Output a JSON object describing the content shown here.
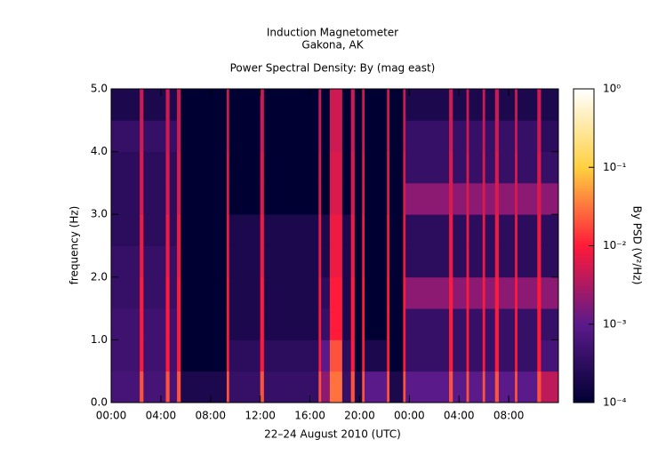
{
  "chart_data": {
    "type": "spectrogram",
    "title": "Induction Magnetometer",
    "subtitle": "Gakona, AK",
    "plot_title": "Power Spectral Density: By (mag east)",
    "xlabel": "22–24 August 2010 (UTC)",
    "ylabel": "frequency (Hz)",
    "colorbar_label": "By PSD (V²/Hz)",
    "xlim": [
      0,
      36
    ],
    "xticks": [
      {
        "value": 0,
        "label": "00:00"
      },
      {
        "value": 4,
        "label": "04:00"
      },
      {
        "value": 8,
        "label": "08:00"
      },
      {
        "value": 12,
        "label": "12:00"
      },
      {
        "value": 16,
        "label": "16:00"
      },
      {
        "value": 20,
        "label": "20:00"
      },
      {
        "value": 24,
        "label": "00:00"
      },
      {
        "value": 28,
        "label": "04:00"
      },
      {
        "value": 32,
        "label": "08:00"
      }
    ],
    "ylim": [
      0,
      5
    ],
    "yticks": [
      {
        "value": 0,
        "label": "0.0"
      },
      {
        "value": 1,
        "label": "1.0"
      },
      {
        "value": 2,
        "label": "2.0"
      },
      {
        "value": 3,
        "label": "3.0"
      },
      {
        "value": 4,
        "label": "4.0"
      },
      {
        "value": 5,
        "label": "5.0"
      }
    ],
    "zscale": "log",
    "zlim": [
      0.0001,
      1
    ],
    "zticks": [
      {
        "value": 0.0001,
        "label": "10⁻⁴"
      },
      {
        "value": 0.001,
        "label": "10⁻³"
      },
      {
        "value": 0.01,
        "label": "10⁻²"
      },
      {
        "value": 0.1,
        "label": "10⁻¹"
      },
      {
        "value": 1,
        "label": "10⁰"
      }
    ],
    "colormap": [
      "#000033",
      "#5a1a8a",
      "#ff1a3a",
      "#ffd040",
      "#ffffff"
    ],
    "time_bins": [
      0,
      2.3,
      2.6,
      4.4,
      4.7,
      5.3,
      5.6,
      9.3,
      9.5,
      12.0,
      12.3,
      16.7,
      16.9,
      17.6,
      18.6,
      19.3,
      19.6,
      20.2,
      20.4,
      22.2,
      22.4,
      23.5,
      23.7,
      27.2,
      27.5,
      28.6,
      28.8,
      29.9,
      30.1,
      30.9,
      31.2,
      32.5,
      32.7,
      34.3,
      34.6,
      36
    ],
    "frequency_bins": [
      0,
      0.5,
      1.0,
      1.5,
      2.0,
      2.5,
      3.0,
      3.5,
      4.0,
      4.5,
      5.0
    ],
    "z": [
      [
        0.0006,
        0.0005,
        0.0005,
        0.0004,
        0.0004,
        0.0003,
        0.0003,
        0.0003,
        0.0004,
        0.0002
      ],
      [
        0.02,
        0.01,
        0.01,
        0.01,
        0.008,
        0.008,
        0.006,
        0.006,
        0.005,
        0.005
      ],
      [
        0.0006,
        0.0005,
        0.0005,
        0.0004,
        0.0004,
        0.0003,
        0.0003,
        0.0003,
        0.0004,
        0.0002
      ],
      [
        0.02,
        0.01,
        0.01,
        0.01,
        0.008,
        0.008,
        0.006,
        0.006,
        0.005,
        0.005
      ],
      [
        0.0006,
        0.0005,
        0.0005,
        0.0004,
        0.0004,
        0.0003,
        0.0003,
        0.0003,
        0.0004,
        0.0002
      ],
      [
        0.02,
        0.01,
        0.01,
        0.01,
        0.008,
        0.008,
        0.006,
        0.006,
        0.005,
        0.005
      ],
      [
        0.0002,
        0.0001,
        0.0001,
        0.0001,
        0.0001,
        0.0001,
        0.0001,
        0.0001,
        0.0001,
        0.0001
      ],
      [
        0.02,
        0.01,
        0.01,
        0.01,
        0.008,
        0.008,
        0.006,
        0.006,
        0.005,
        0.005
      ],
      [
        0.0004,
        0.0003,
        0.0002,
        0.0002,
        0.0002,
        0.0002,
        0.0001,
        0.0001,
        0.0001,
        0.0001
      ],
      [
        0.02,
        0.01,
        0.01,
        0.01,
        0.008,
        0.008,
        0.006,
        0.006,
        0.005,
        0.005
      ],
      [
        0.0004,
        0.0003,
        0.0002,
        0.0002,
        0.0002,
        0.0002,
        0.0001,
        0.0001,
        0.0001,
        0.0001
      ],
      [
        0.02,
        0.01,
        0.01,
        0.01,
        0.008,
        0.008,
        0.006,
        0.006,
        0.005,
        0.005
      ],
      [
        0.002,
        0.001,
        0.0004,
        0.0003,
        0.0002,
        0.0002,
        0.0001,
        0.0001,
        0.0001,
        0.0001
      ],
      [
        0.03,
        0.02,
        0.01,
        0.01,
        0.008,
        0.008,
        0.006,
        0.006,
        0.005,
        0.005
      ],
      [
        0.0004,
        0.0003,
        0.0002,
        0.0002,
        0.0002,
        0.0002,
        0.0001,
        0.0001,
        0.0001,
        0.0001
      ],
      [
        0.02,
        0.01,
        0.01,
        0.01,
        0.008,
        0.008,
        0.006,
        0.006,
        0.005,
        0.005
      ],
      [
        0.0002,
        0.0001,
        0.0001,
        0.0001,
        0.0001,
        0.0001,
        0.0001,
        0.0001,
        0.0001,
        0.0001
      ],
      [
        0.02,
        0.01,
        0.01,
        0.01,
        0.008,
        0.008,
        0.006,
        0.006,
        0.005,
        0.005
      ],
      [
        0.001,
        0.0002,
        0.0001,
        0.0001,
        0.0001,
        0.0001,
        0.0001,
        0.0001,
        0.0001,
        0.0001
      ],
      [
        0.02,
        0.01,
        0.01,
        0.01,
        0.008,
        0.008,
        0.006,
        0.006,
        0.005,
        0.005
      ],
      [
        0.0002,
        0.0001,
        0.0001,
        0.0001,
        0.0001,
        0.0001,
        0.0001,
        0.0001,
        0.0001,
        0.0001
      ],
      [
        0.02,
        0.01,
        0.01,
        0.01,
        0.008,
        0.008,
        0.006,
        0.006,
        0.005,
        0.005
      ],
      [
        0.001,
        0.0004,
        0.0004,
        0.002,
        0.0003,
        0.0003,
        0.002,
        0.0004,
        0.0004,
        0.0002
      ],
      [
        0.02,
        0.01,
        0.01,
        0.01,
        0.008,
        0.008,
        0.006,
        0.006,
        0.005,
        0.005
      ],
      [
        0.001,
        0.0004,
        0.0004,
        0.002,
        0.0003,
        0.0003,
        0.002,
        0.0004,
        0.0004,
        0.0002
      ],
      [
        0.02,
        0.01,
        0.01,
        0.01,
        0.008,
        0.008,
        0.006,
        0.006,
        0.005,
        0.005
      ],
      [
        0.001,
        0.0004,
        0.0004,
        0.002,
        0.0003,
        0.0003,
        0.002,
        0.0004,
        0.0004,
        0.0002
      ],
      [
        0.02,
        0.01,
        0.01,
        0.01,
        0.008,
        0.008,
        0.006,
        0.006,
        0.005,
        0.005
      ],
      [
        0.001,
        0.0004,
        0.0004,
        0.002,
        0.0003,
        0.0003,
        0.002,
        0.0004,
        0.0004,
        0.0002
      ],
      [
        0.02,
        0.01,
        0.01,
        0.01,
        0.008,
        0.008,
        0.006,
        0.006,
        0.005,
        0.005
      ],
      [
        0.001,
        0.0004,
        0.0004,
        0.002,
        0.0003,
        0.0003,
        0.002,
        0.0004,
        0.0004,
        0.0002
      ],
      [
        0.02,
        0.01,
        0.01,
        0.01,
        0.008,
        0.008,
        0.006,
        0.006,
        0.005,
        0.005
      ],
      [
        0.001,
        0.0004,
        0.0004,
        0.002,
        0.0003,
        0.0003,
        0.002,
        0.0004,
        0.0004,
        0.0002
      ],
      [
        0.02,
        0.01,
        0.01,
        0.01,
        0.008,
        0.008,
        0.006,
        0.006,
        0.005,
        0.005
      ],
      [
        0.004,
        0.0006,
        0.0004,
        0.002,
        0.0003,
        0.0003,
        0.002,
        0.0004,
        0.0003,
        0.0002
      ]
    ]
  }
}
